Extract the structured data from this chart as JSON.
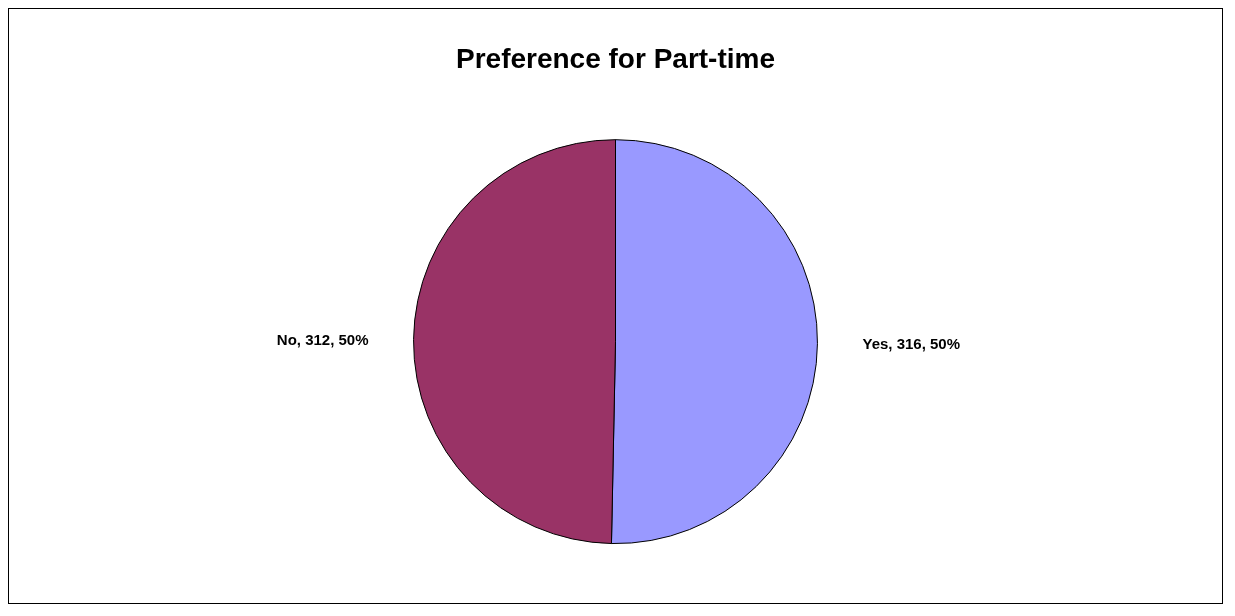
{
  "chart_data": {
    "type": "pie",
    "title": "Preference for Part-time",
    "categories": [
      "Yes",
      "No"
    ],
    "values": [
      316,
      312
    ],
    "colors": [
      "#9999ff",
      "#993366"
    ],
    "value_labels": [
      "316, 50%",
      "312, 50%"
    ],
    "legend": false
  }
}
